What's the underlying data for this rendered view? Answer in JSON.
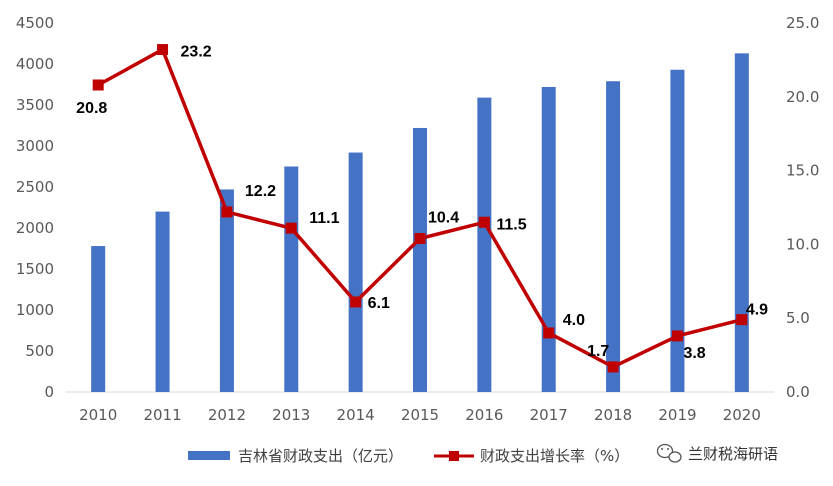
{
  "chart_data": {
    "type": "bar",
    "categories": [
      "2010",
      "2011",
      "2012",
      "2013",
      "2014",
      "2015",
      "2016",
      "2017",
      "2018",
      "2019",
      "2020"
    ],
    "series": [
      {
        "name": "吉林省财政支出（亿元）",
        "type": "bar",
        "axis": "left",
        "color": "#4472C4",
        "values": [
          1780,
          2200,
          2470,
          2750,
          2920,
          3220,
          3590,
          3720,
          3790,
          3930,
          4130
        ]
      },
      {
        "name": "财政支出增长率（%）",
        "type": "line",
        "axis": "right",
        "color": "#C00000",
        "marker": "square",
        "values": [
          20.8,
          23.2,
          12.2,
          11.1,
          6.1,
          10.4,
          11.5,
          4.0,
          1.7,
          3.8,
          4.9
        ],
        "labels": [
          "20.8",
          "23.2",
          "12.2",
          "11.1",
          "6.1",
          "10.4",
          "11.5",
          "4.0",
          "1.7",
          "3.8",
          "4.9"
        ]
      }
    ],
    "y_left": {
      "ylim": [
        0,
        4500
      ],
      "ticks": [
        "0",
        "500",
        "1000",
        "1500",
        "2000",
        "2500",
        "3000",
        "3500",
        "4000",
        "4500"
      ]
    },
    "y_right": {
      "ylim": [
        0,
        25
      ],
      "ticks": [
        "0.0",
        "5.0",
        "10.0",
        "15.0",
        "20.0",
        "25.0"
      ]
    },
    "grid": false,
    "legend": "bottom"
  },
  "watermark": {
    "text": "兰财税海研语",
    "icon": "wechat-icon"
  }
}
